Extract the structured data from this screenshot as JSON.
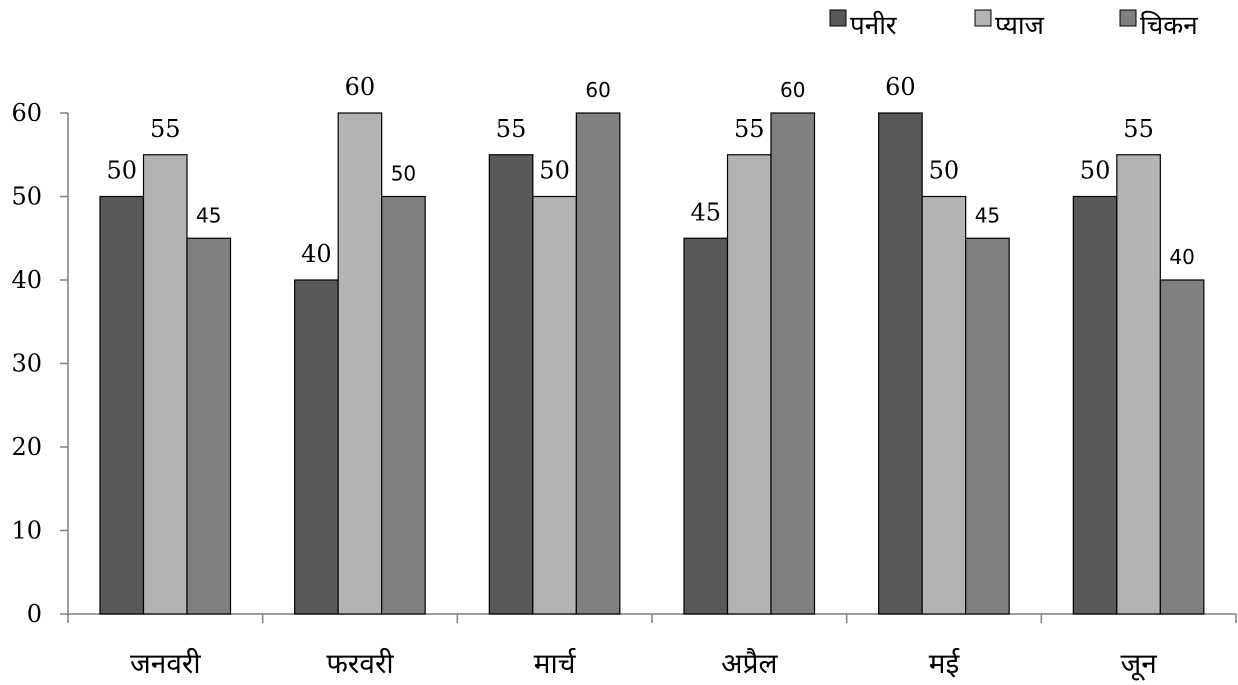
{
  "colors": {
    "paneer": "#595959",
    "pyaaj": "#b3b3b3",
    "chicken": "#808080"
  },
  "chart_data": {
    "type": "bar",
    "categories": [
      "जनवरी",
      "फरवरी",
      "मार्च",
      "अप्रैल",
      "मई",
      "जून"
    ],
    "series": [
      {
        "name": "पनीर",
        "values": [
          50,
          40,
          55,
          45,
          60,
          50
        ]
      },
      {
        "name": "प्याज",
        "values": [
          55,
          60,
          50,
          55,
          50,
          55
        ]
      },
      {
        "name": "चिकन",
        "values": [
          45,
          50,
          60,
          60,
          45,
          40
        ]
      }
    ],
    "yticks": [
      "0",
      "10",
      "20",
      "30",
      "40",
      "50",
      "60"
    ],
    "ylim": [
      0,
      60
    ],
    "grid": false,
    "legend_position": "top-right"
  }
}
